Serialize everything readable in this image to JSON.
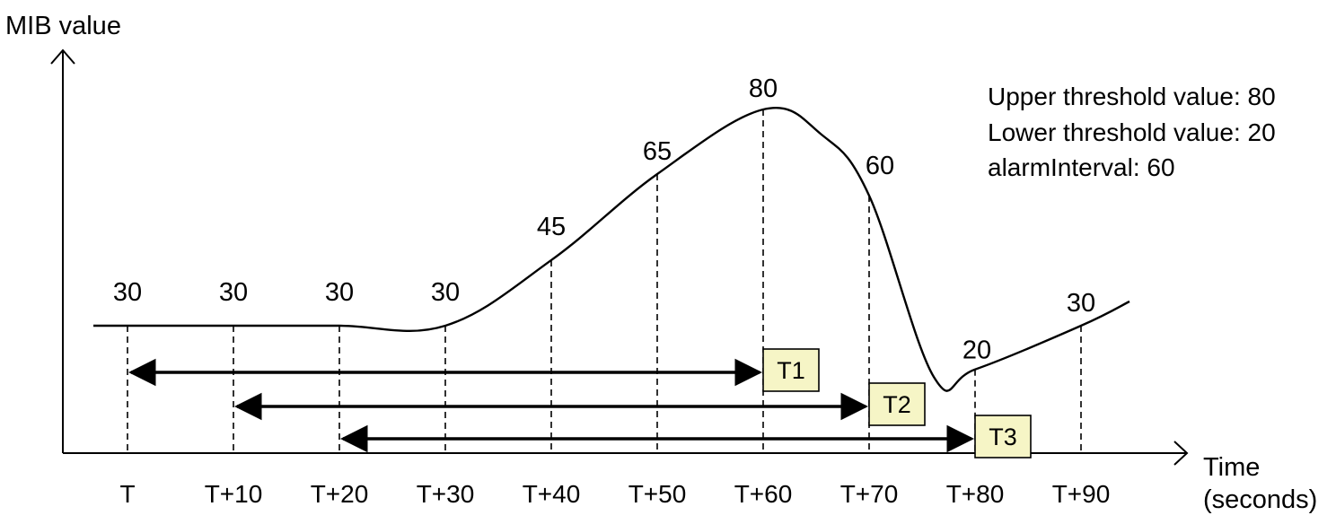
{
  "chart_data": {
    "type": "line",
    "ylabel": "MIB value",
    "xlabel": "Time\n(seconds)",
    "x": [
      "T",
      "T+10",
      "T+20",
      "T+30",
      "T+40",
      "T+50",
      "T+60",
      "T+70",
      "T+80",
      "T+90"
    ],
    "values": [
      30,
      30,
      30,
      30,
      45,
      65,
      80,
      60,
      20,
      30
    ],
    "notes": [
      "Upper threshold value: 80",
      "Lower threshold value: 20",
      "alarmInterval: 60"
    ],
    "intervals": [
      {
        "label": "T1",
        "from": "T",
        "to": "T+60"
      },
      {
        "label": "T2",
        "from": "T+10",
        "to": "T+70"
      },
      {
        "label": "T3",
        "from": "T+20",
        "to": "T+80"
      }
    ]
  }
}
